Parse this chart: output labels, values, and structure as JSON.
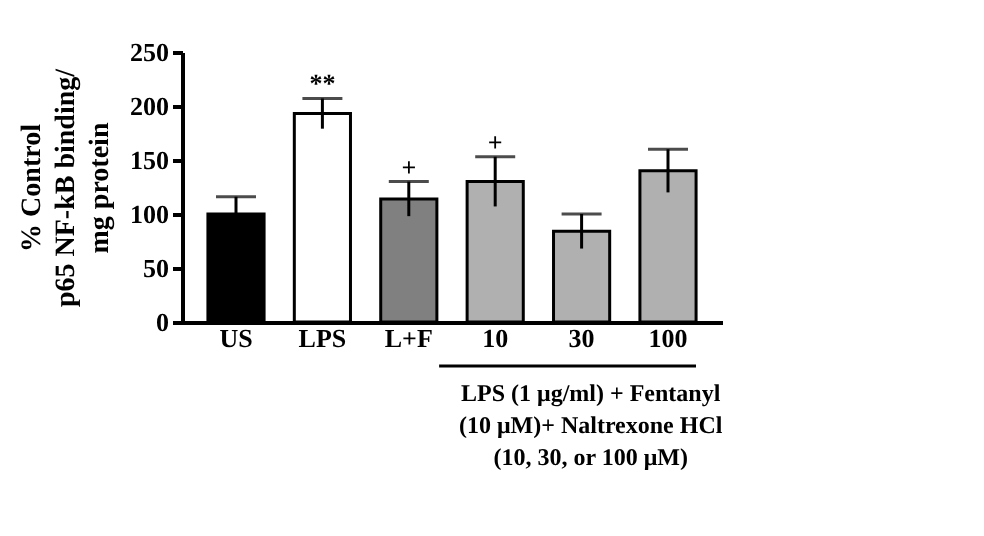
{
  "chart_data": {
    "type": "bar",
    "ylabel": "% Control\np65 NF-kB binding/\nmg protein",
    "xlabel": "LPS (1 μg/ml) + Fentanyl\n(10 μM)+ Naltrexone HCl\n(10, 30, or 100 μM)",
    "categories": [
      "US",
      "LPS",
      "L+F",
      "10",
      "30",
      "100"
    ],
    "values": [
      100,
      193,
      114,
      130,
      84,
      140
    ],
    "errors": [
      16,
      14,
      16,
      23,
      16,
      20
    ],
    "colors": [
      "#000000",
      "#ffffff",
      "#808080",
      "#b0b0b0",
      "#b0b0b0",
      "#b0b0b0"
    ],
    "ylim": [
      0,
      250
    ],
    "yticks": [
      0,
      50,
      100,
      150,
      200,
      250
    ],
    "annotations": [
      {
        "text": "**",
        "x": "LPS",
        "y": 207
      },
      {
        "text": "+",
        "x": "L+F",
        "y": 130
      },
      {
        "text": "+",
        "x": "10",
        "y": 153
      }
    ],
    "grid": false,
    "legend": false
  }
}
